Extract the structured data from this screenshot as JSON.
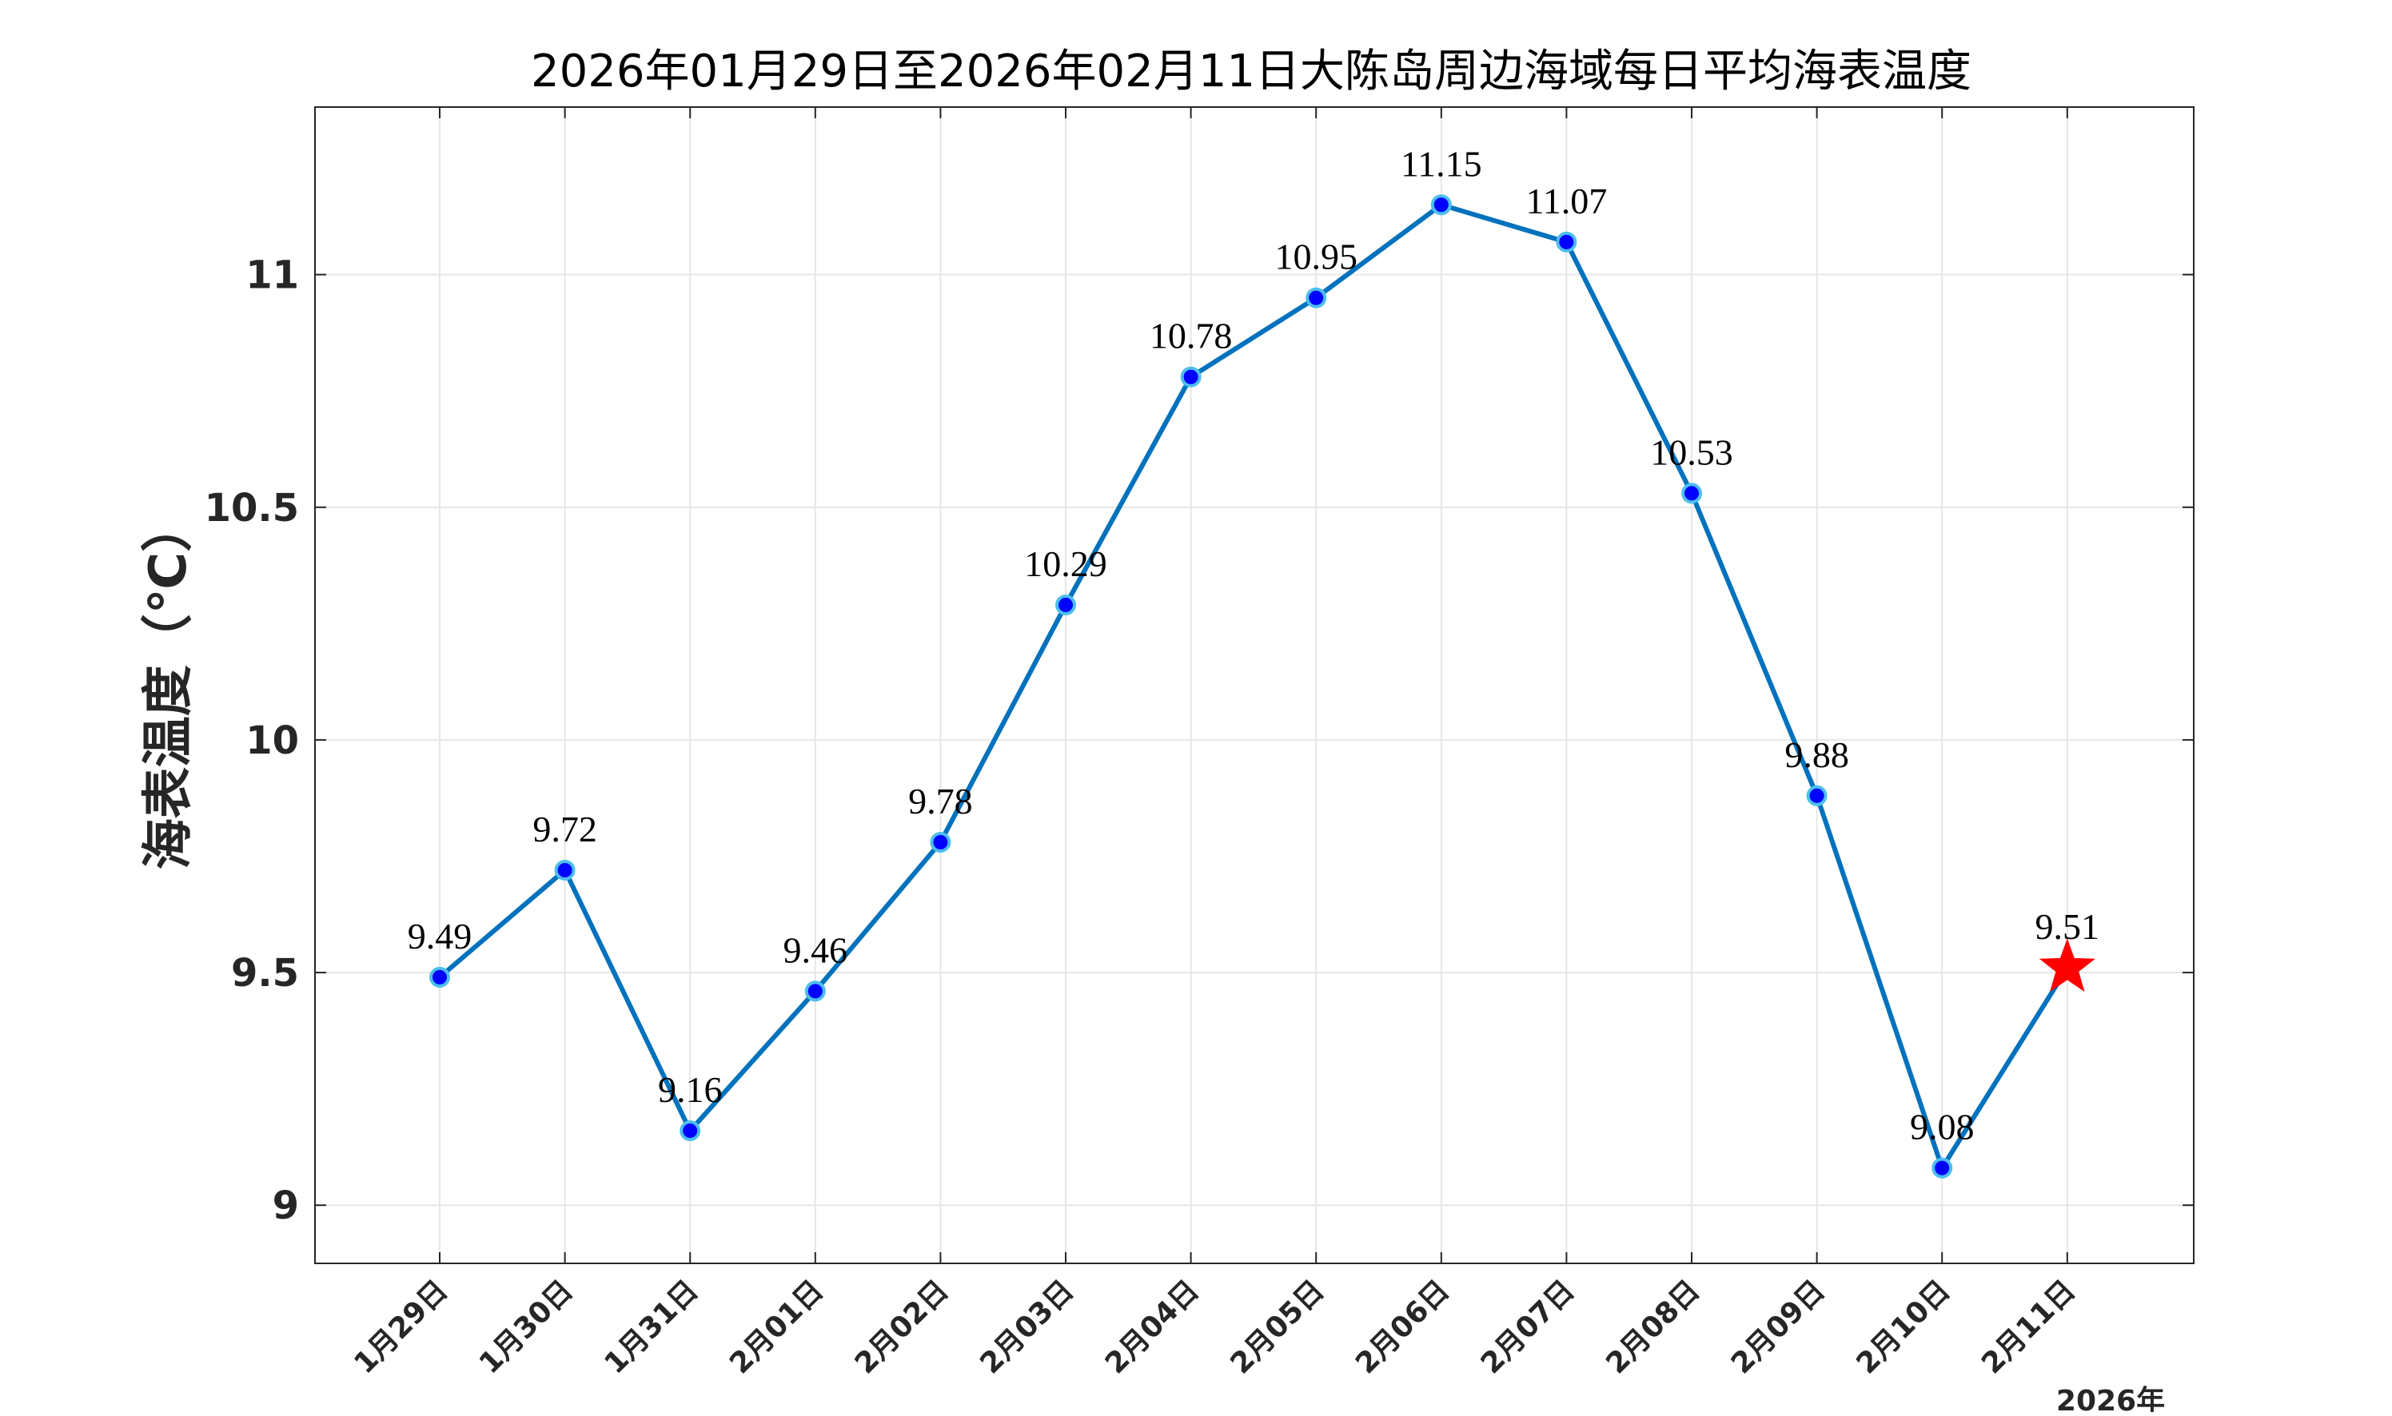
{
  "chart_data": {
    "type": "line",
    "title": "2026年01月29日至2026年02月11日大陈岛周边海域每日平均海表温度",
    "ylabel": "海表温度（℃）",
    "xlabel": "",
    "year_label": "2026年",
    "categories": [
      "1月29日",
      "1月30日",
      "1月31日",
      "2月01日",
      "2月02日",
      "2月03日",
      "2月04日",
      "2月05日",
      "2月06日",
      "2月07日",
      "2月08日",
      "2月09日",
      "2月10日",
      "2月11日"
    ],
    "values": [
      9.49,
      9.72,
      9.16,
      9.46,
      9.78,
      10.29,
      10.78,
      10.95,
      11.15,
      11.07,
      10.53,
      9.88,
      9.08,
      9.51
    ],
    "data_labels": [
      "9.49",
      "9.72",
      "9.16",
      "9.46",
      "9.78",
      "10.29",
      "10.78",
      "10.95",
      "11.15",
      "11.07",
      "10.53",
      "9.88",
      "9.08",
      "9.51"
    ],
    "yticks": [
      9,
      9.5,
      10,
      10.5,
      11
    ],
    "ytick_labels": [
      "9",
      "9.5",
      "10",
      "10.5",
      "11"
    ],
    "ylim": [
      8.875,
      11.36
    ],
    "grid": true,
    "legend": "none",
    "highlight_last_point": "star",
    "colors": {
      "line": "#0072BD",
      "marker_fill": "#0000FF",
      "marker_edge": "#4DBEEE",
      "highlight": "#FF0000",
      "grid": "#E6E6E6",
      "axes": "#262626"
    }
  }
}
